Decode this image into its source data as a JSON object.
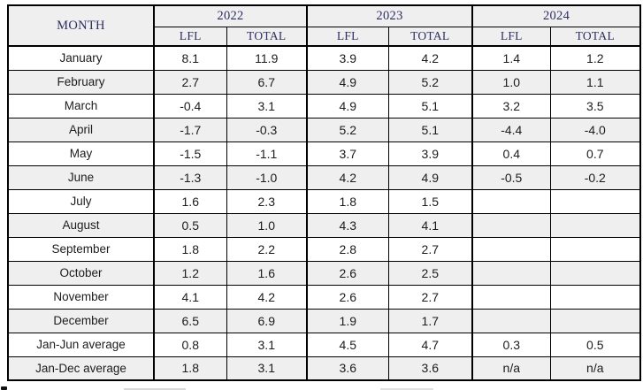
{
  "table": {
    "month_header": "MONTH",
    "year_groups": [
      {
        "year": "2022",
        "sub_columns": [
          "LFL",
          "TOTAL"
        ]
      },
      {
        "year": "2023",
        "sub_columns": [
          "LFL",
          "TOTAL"
        ]
      },
      {
        "year": "2024",
        "sub_columns": [
          "LFL",
          "TOTAL"
        ]
      }
    ],
    "rows": [
      {
        "month": "January",
        "values": [
          "8.1",
          "11.9",
          "3.9",
          "4.2",
          "1.4",
          "1.2"
        ]
      },
      {
        "month": "February",
        "values": [
          "2.7",
          "6.7",
          "4.9",
          "5.2",
          "1.0",
          "1.1"
        ]
      },
      {
        "month": "March",
        "values": [
          "-0.4",
          "3.1",
          "4.9",
          "5.1",
          "3.2",
          "3.5"
        ]
      },
      {
        "month": "April",
        "values": [
          "-1.7",
          "-0.3",
          "5.2",
          "5.1",
          "-4.4",
          "-4.0"
        ]
      },
      {
        "month": "May",
        "values": [
          "-1.5",
          "-1.1",
          "3.7",
          "3.9",
          "0.4",
          "0.7"
        ]
      },
      {
        "month": "June",
        "values": [
          "-1.3",
          "-1.0",
          "4.2",
          "4.9",
          "-0.5",
          "-0.2"
        ]
      },
      {
        "month": "July",
        "values": [
          "1.6",
          "2.3",
          "1.8",
          "1.5",
          "",
          ""
        ]
      },
      {
        "month": "August",
        "values": [
          "0.5",
          "1.0",
          "4.3",
          "4.1",
          "",
          ""
        ]
      },
      {
        "month": "September",
        "values": [
          "1.8",
          "2.2",
          "2.8",
          "2.7",
          "",
          ""
        ]
      },
      {
        "month": "October",
        "values": [
          "1.2",
          "1.6",
          "2.6",
          "2.5",
          "",
          ""
        ]
      },
      {
        "month": "November",
        "values": [
          "4.1",
          "4.2",
          "2.6",
          "2.7",
          "",
          ""
        ]
      },
      {
        "month": "December",
        "values": [
          "6.5",
          "6.9",
          "1.9",
          "1.7",
          "",
          ""
        ]
      },
      {
        "month": "Jan-Jun average",
        "values": [
          "0.8",
          "3.1",
          "4.5",
          "4.7",
          "0.3",
          "0.5"
        ]
      },
      {
        "month": "Jan-Dec average",
        "values": [
          "1.8",
          "3.1",
          "3.6",
          "3.6",
          "n/a",
          "n/a"
        ]
      }
    ]
  },
  "colors": {
    "header_text": "#2e2e63",
    "body_text": "#1c1c1c",
    "header_background": "#efefef",
    "row_alt_background": "#efefef",
    "border": "#000000"
  }
}
